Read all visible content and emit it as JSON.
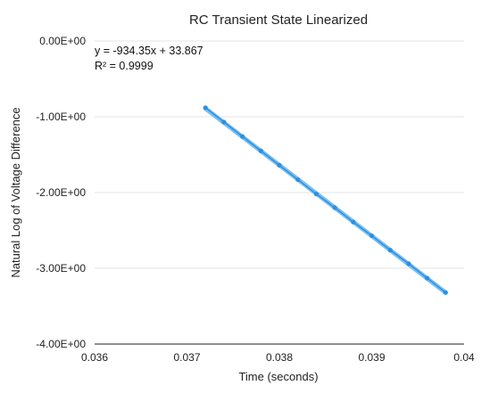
{
  "chart_data": {
    "type": "scatter",
    "title": "RC Transient State Linearized",
    "xlabel": "Time (seconds)",
    "ylabel": "Natural Log of Voltage Difference",
    "xlim": [
      0.036,
      0.04
    ],
    "ylim": [
      -4.0,
      0.0
    ],
    "xticks": [
      0.036,
      0.037,
      0.038,
      0.039,
      0.04
    ],
    "xtick_labels": [
      "0.036",
      "0.037",
      "0.038",
      "0.039",
      "0.04"
    ],
    "yticks": [
      0.0,
      -1.0,
      -2.0,
      -3.0,
      -4.0
    ],
    "ytick_labels": [
      "0.00E+00",
      "-1.00E+00",
      "-2.00E+00",
      "-3.00E+00",
      "-4.00E+00"
    ],
    "grid": true,
    "series": [
      {
        "color": "#2f8fe0",
        "x": [
          0.0372,
          0.0374,
          0.0376,
          0.0378,
          0.038,
          0.0382,
          0.0384,
          0.0386,
          0.0388,
          0.039,
          0.0392,
          0.0394,
          0.0396,
          0.0398
        ],
        "y": [
          -0.88,
          -1.07,
          -1.26,
          -1.45,
          -1.64,
          -1.83,
          -2.02,
          -2.2,
          -2.39,
          -2.57,
          -2.76,
          -2.94,
          -3.13,
          -3.32
        ]
      }
    ],
    "trendline": {
      "color": "#64b6ee",
      "slope": -934.35,
      "intercept": 33.867,
      "x_range": [
        0.0372,
        0.0398
      ]
    },
    "annotations": {
      "equation": "y = -934.35x + 33.867",
      "r_squared": "R² = 0.9999"
    }
  }
}
